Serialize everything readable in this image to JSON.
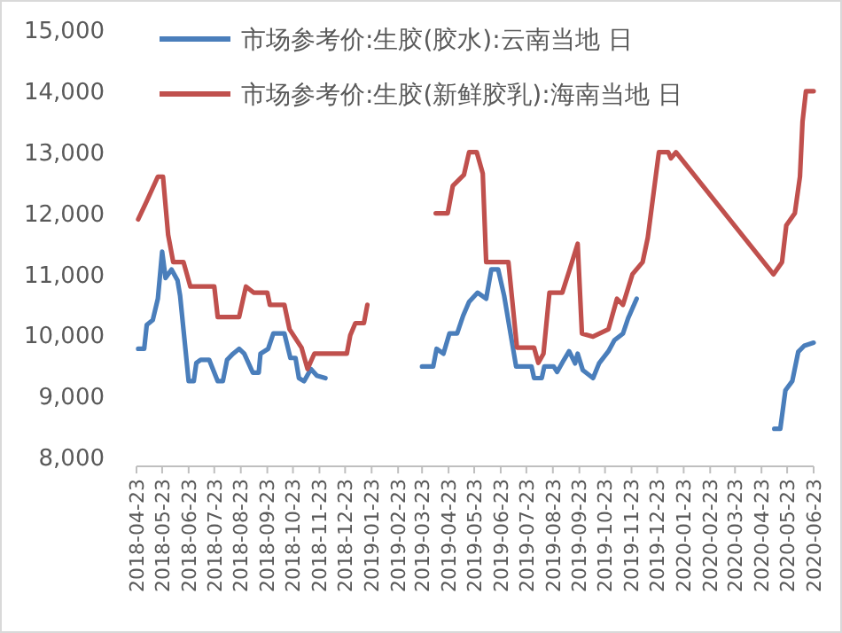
{
  "chart_data": {
    "type": "line",
    "legend": "top",
    "grid": false,
    "marker": "none",
    "line_style": "solid",
    "xlim": [
      "2018-04-23",
      "2020-06-23"
    ],
    "xticks": [
      "2018-04-23",
      "2018-05-23",
      "2018-06-23",
      "2018-07-23",
      "2018-08-23",
      "2018-09-23",
      "2018-10-23",
      "2018-11-23",
      "2018-12-23",
      "2019-01-23",
      "2019-02-23",
      "2019-03-23",
      "2019-04-23",
      "2019-05-23",
      "2019-06-23",
      "2019-07-23",
      "2019-08-23",
      "2019-09-23",
      "2019-10-23",
      "2019-11-23",
      "2019-12-23",
      "2020-01-23",
      "2020-02-23",
      "2020-03-23",
      "2020-04-23",
      "2020-05-23",
      "2020-06-23"
    ],
    "ylim": [
      8000,
      15000
    ],
    "yticks": [
      {
        "value": 8000,
        "label": "8,000"
      },
      {
        "value": 9000,
        "label": "9,000"
      },
      {
        "value": 10000,
        "label": "10,000"
      },
      {
        "value": 11000,
        "label": "11,000"
      },
      {
        "value": 12000,
        "label": "12,000"
      },
      {
        "value": 13000,
        "label": "13,000"
      },
      {
        "value": 14000,
        "label": "14,000"
      },
      {
        "value": 15000,
        "label": "15,000"
      }
    ],
    "series": [
      {
        "name": "市场参考价:生胶(胶水):云南当地 日",
        "color": "#4a7ebb",
        "x": [
          "2018-04-25",
          "2018-05-02",
          "2018-05-05",
          "2018-05-12",
          "2018-05-18",
          "2018-05-23",
          "2018-05-27",
          "2018-06-03",
          "2018-06-10",
          "2018-06-13",
          "2018-06-23",
          "2018-06-29",
          "2018-07-02",
          "2018-07-07",
          "2018-07-17",
          "2018-07-27",
          "2018-08-02",
          "2018-08-07",
          "2018-08-14",
          "2018-08-21",
          "2018-08-27",
          "2018-09-06",
          "2018-09-13",
          "2018-09-15",
          "2018-09-24",
          "2018-09-30",
          "2018-10-13",
          "2018-10-20",
          "2018-10-26",
          "2018-10-30",
          "2018-11-05",
          "2018-11-13",
          "2018-11-20",
          "2018-11-30",
          "2019-01-15",
          "2019-03-23",
          "2019-04-05",
          "2019-04-09",
          "2019-04-17",
          "2019-04-24",
          "2019-05-03",
          "2019-05-10",
          "2019-05-17",
          "2019-05-27",
          "2019-06-06",
          "2019-06-12",
          "2019-06-20",
          "2019-06-27",
          "2019-07-11",
          "2019-07-29",
          "2019-08-01",
          "2019-08-10",
          "2019-08-13",
          "2019-08-24",
          "2019-08-28",
          "2019-09-05",
          "2019-09-11",
          "2019-09-18",
          "2019-09-21",
          "2019-09-27",
          "2019-10-09",
          "2019-10-16",
          "2019-10-27",
          "2019-11-03",
          "2019-11-13",
          "2019-11-19",
          "2019-11-29",
          "2020-02-01",
          "2020-05-08",
          "2020-05-15",
          "2020-05-21",
          "2020-05-29",
          "2020-06-05",
          "2020-06-12",
          "2020-06-23"
        ],
        "values": [
          9780,
          9780,
          10170,
          10250,
          10600,
          11370,
          10940,
          11080,
          10900,
          10650,
          9250,
          9250,
          9550,
          9600,
          9600,
          9250,
          9250,
          9600,
          9700,
          9780,
          9700,
          9390,
          9390,
          9700,
          9780,
          10030,
          10030,
          9630,
          9630,
          9300,
          9250,
          9450,
          9340,
          9300,
          null,
          9490,
          9490,
          9780,
          9700,
          10030,
          10030,
          10320,
          10550,
          10700,
          10600,
          11080,
          11080,
          10650,
          9490,
          9490,
          9300,
          9300,
          9490,
          9490,
          9400,
          9600,
          9740,
          9540,
          9700,
          9430,
          9300,
          9540,
          9740,
          9920,
          10030,
          10280,
          10600,
          null,
          8470,
          8470,
          9100,
          9250,
          9730,
          9830,
          9880
        ]
      },
      {
        "name": "市场参考价:生胶(新鲜胶乳):海南当地 日",
        "color": "#c0504d",
        "x": [
          "2018-04-25",
          "2018-05-05",
          "2018-05-18",
          "2018-05-24",
          "2018-05-30",
          "2018-06-05",
          "2018-06-17",
          "2018-06-25",
          "2018-07-23",
          "2018-07-27",
          "2018-08-21",
          "2018-08-29",
          "2018-09-07",
          "2018-09-23",
          "2018-09-26",
          "2018-10-13",
          "2018-10-19",
          "2018-11-02",
          "2018-11-09",
          "2018-11-17",
          "2018-12-25",
          "2018-12-29",
          "2019-01-04",
          "2019-01-14",
          "2019-01-18",
          "2019-02-15",
          "2019-04-08",
          "2019-04-22",
          "2019-04-28",
          "2019-05-11",
          "2019-05-17",
          "2019-05-26",
          "2019-06-02",
          "2019-06-06",
          "2019-07-02",
          "2019-07-12",
          "2019-08-01",
          "2019-08-06",
          "2019-08-12",
          "2019-08-19",
          "2019-09-03",
          "2019-09-11",
          "2019-09-21",
          "2019-09-26",
          "2019-10-09",
          "2019-10-27",
          "2019-11-06",
          "2019-11-13",
          "2019-11-24",
          "2019-12-06",
          "2019-12-12",
          "2019-12-25",
          "2020-01-05",
          "2020-01-08",
          "2020-01-14",
          "2020-05-07",
          "2020-05-17",
          "2020-05-22",
          "2020-06-01",
          "2020-06-07",
          "2020-06-10",
          "2020-06-14",
          "2020-06-23"
        ],
        "values": [
          11900,
          12200,
          12600,
          12600,
          11650,
          11200,
          11200,
          10800,
          10800,
          10300,
          10300,
          10800,
          10700,
          10700,
          10500,
          10500,
          10100,
          9800,
          9450,
          9700,
          9700,
          10000,
          10200,
          10200,
          10500,
          null,
          12000,
          12000,
          12450,
          12630,
          13000,
          13000,
          12650,
          11200,
          11200,
          9800,
          9800,
          9550,
          9700,
          10700,
          10700,
          11050,
          11500,
          10030,
          9980,
          10100,
          10600,
          10500,
          11000,
          11200,
          11600,
          13000,
          13000,
          12900,
          13000,
          11000,
          11200,
          11800,
          12000,
          12600,
          13500,
          14000,
          14000
        ]
      }
    ]
  }
}
